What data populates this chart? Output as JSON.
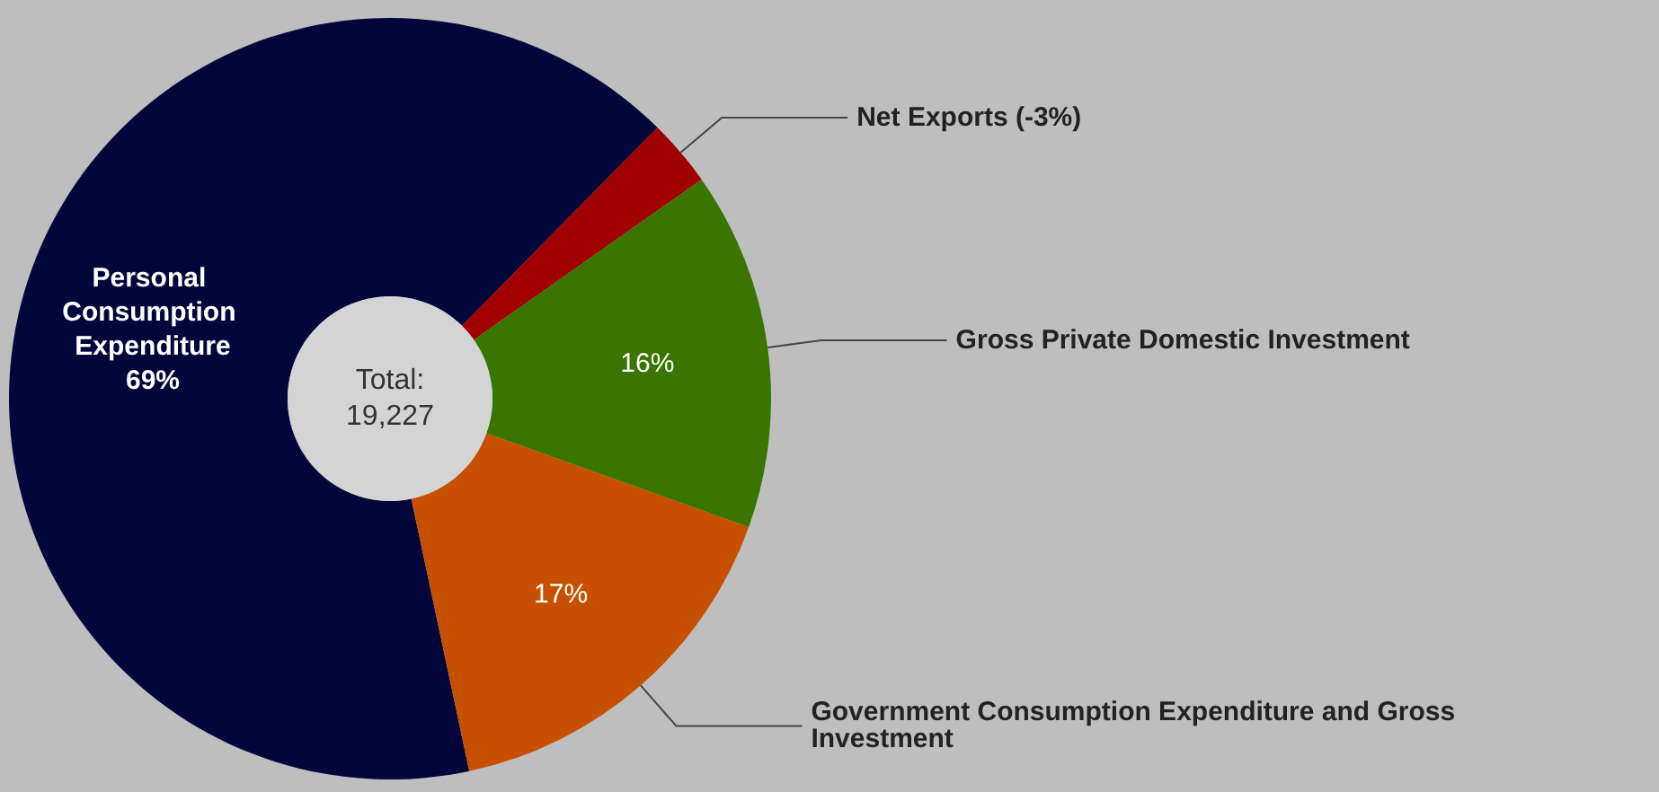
{
  "chart_data": {
    "type": "donut",
    "categories": [
      "Personal Consumption Expenditure",
      "Net Exports (-3%)",
      "Gross Private Domestic Investment",
      "Government Consumption Expenditure and Gross Investment"
    ],
    "values": [
      69,
      3,
      16,
      17
    ],
    "colors": [
      "#03063a",
      "#a00000",
      "#3a7500",
      "#c65000"
    ],
    "value_labels": [
      "69%",
      null,
      "16%",
      "17%"
    ],
    "annotations": [
      "Total:",
      "19,227"
    ],
    "legend": false
  }
}
